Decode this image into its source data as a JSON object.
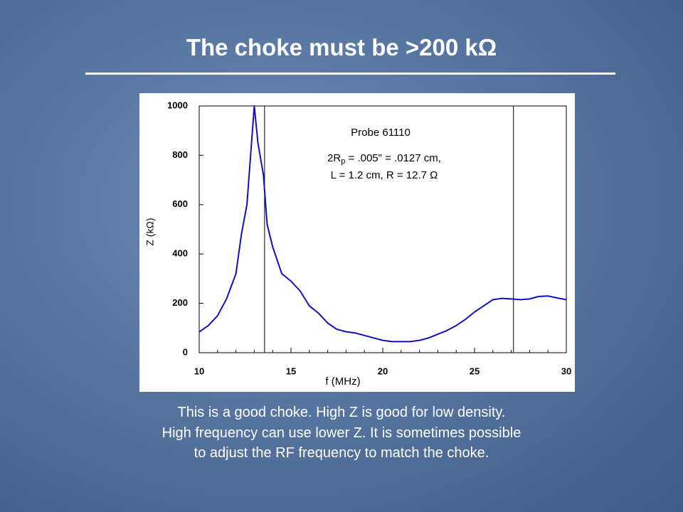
{
  "title": "The choke must be >200 kΩ",
  "caption": [
    "This is a good choke.  High Z is good for low density.",
    "High frequency can use lower Z.  It is sometimes possible",
    "to adjust the RF frequency to match the choke."
  ],
  "chart_data": {
    "type": "line",
    "xlabel": "f (MHz)",
    "ylabel": "Z (kΩ)",
    "annotations": [
      "Probe 61110",
      [
        "2R",
        "p",
        " = .005\" = .0127 cm,"
      ],
      "L = 1.2 cm,  R = 12.7 Ω"
    ],
    "x": [
      10,
      10.5,
      11,
      11.5,
      12,
      12.3,
      12.6,
      12.8,
      13,
      13.2,
      13.5,
      13.7,
      14,
      14.5,
      15,
      15.5,
      16,
      16.5,
      17,
      17.5,
      18,
      18.5,
      19,
      19.5,
      20,
      20.5,
      21,
      21.5,
      22,
      22.5,
      23,
      23.5,
      24,
      24.5,
      25,
      25.5,
      26,
      26.5,
      27,
      27.5,
      28,
      28.5,
      29,
      29.5,
      30
    ],
    "series": [
      {
        "color": "#1010c0",
        "values": [
          84,
          110,
          150,
          220,
          320,
          480,
          600,
          800,
          1000,
          850,
          720,
          520,
          430,
          320,
          290,
          250,
          190,
          160,
          120,
          95,
          85,
          80,
          70,
          60,
          50,
          45,
          45,
          45,
          50,
          60,
          75,
          90,
          110,
          135,
          165,
          190,
          215,
          220,
          218,
          215,
          218,
          228,
          230,
          222,
          215
        ]
      }
    ],
    "vlines": [
      13.56,
      27.12
    ],
    "xlim": [
      10,
      30
    ],
    "xticks": [
      10,
      15,
      20,
      25,
      30
    ],
    "xminorticks": [
      11,
      12,
      13,
      14,
      16,
      17,
      18,
      19,
      21,
      22,
      23,
      24,
      26,
      27,
      28,
      29
    ],
    "ylim": [
      0,
      1000
    ],
    "yticks": [
      0,
      200,
      400,
      600,
      800,
      1000
    ]
  }
}
